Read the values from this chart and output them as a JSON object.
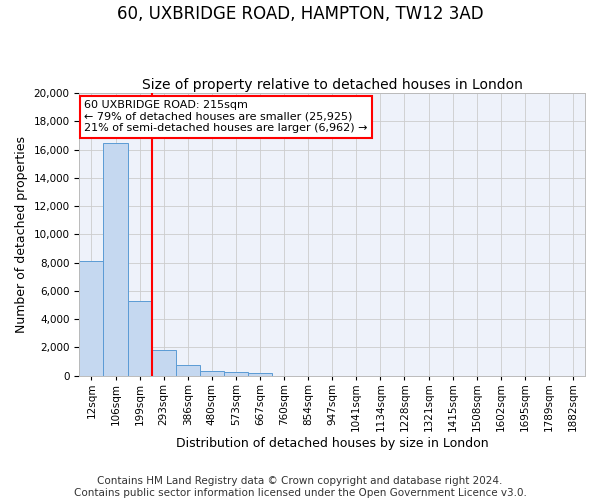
{
  "title": "60, UXBRIDGE ROAD, HAMPTON, TW12 3AD",
  "subtitle": "Size of property relative to detached houses in London",
  "xlabel": "Distribution of detached houses by size in London",
  "ylabel": "Number of detached properties",
  "footer_line1": "Contains HM Land Registry data © Crown copyright and database right 2024.",
  "footer_line2": "Contains public sector information licensed under the Open Government Licence v3.0.",
  "bin_labels": [
    "12sqm",
    "106sqm",
    "199sqm",
    "293sqm",
    "386sqm",
    "480sqm",
    "573sqm",
    "667sqm",
    "760sqm",
    "854sqm",
    "947sqm",
    "1041sqm",
    "1134sqm",
    "1228sqm",
    "1321sqm",
    "1415sqm",
    "1508sqm",
    "1602sqm",
    "1695sqm",
    "1789sqm",
    "1882sqm"
  ],
  "bar_heights": [
    8100,
    16500,
    5300,
    1850,
    750,
    320,
    270,
    230,
    0,
    0,
    0,
    0,
    0,
    0,
    0,
    0,
    0,
    0,
    0,
    0,
    0
  ],
  "bar_color": "#c5d8f0",
  "bar_edge_color": "#5b9bd5",
  "grid_color": "#cccccc",
  "background_color": "#eef2fa",
  "annotation_text": "60 UXBRIDGE ROAD: 215sqm\n← 79% of detached houses are smaller (25,925)\n21% of semi-detached houses are larger (6,962) →",
  "annotation_box_color": "red",
  "vline_color": "red",
  "ylim": [
    0,
    20000
  ],
  "yticks": [
    0,
    2000,
    4000,
    6000,
    8000,
    10000,
    12000,
    14000,
    16000,
    18000,
    20000
  ],
  "title_fontsize": 12,
  "subtitle_fontsize": 10,
  "xlabel_fontsize": 9,
  "ylabel_fontsize": 9,
  "tick_fontsize": 7.5,
  "footer_fontsize": 7.5,
  "annot_fontsize": 8
}
